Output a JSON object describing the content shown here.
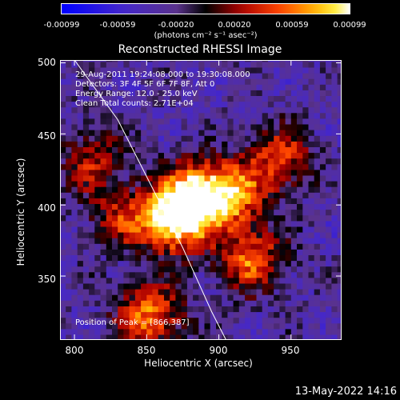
{
  "colorbar": {
    "tick_labels": [
      "-0.00099",
      "-0.00059",
      "-0.00020",
      "0.00020",
      "0.00059",
      "0.00099"
    ],
    "unit_label": "(photons cm⁻² s⁻¹ asec⁻²)",
    "range": [
      -0.00099,
      0.00099
    ]
  },
  "info": {
    "line1": "29-Aug-2011 19:24:08.000 to 19:30:08.000",
    "line2": "Detectors: 3F 4F 5F 6F 7F 8F, Att 0",
    "line3": "Energy Range: 12.0 - 25.0 keV",
    "line4": "Clean     Total counts: 2.71E+04",
    "peak": "Position of Peak = [866,387]"
  },
  "footer": "13-May-2022 14:16",
  "chart_data": {
    "type": "heatmap",
    "title": "Reconstructed RHESSI Image",
    "xlabel": "Heliocentric X (arcsec)",
    "ylabel": "Heliocentric Y (arcsec)",
    "xlim": [
      790,
      985
    ],
    "ylim": [
      305,
      502
    ],
    "xticks": [
      800,
      850,
      900,
      950
    ],
    "yticks": [
      350,
      400,
      450,
      500
    ],
    "peak": [
      866,
      387
    ],
    "limb_curve": [
      [
        800,
        502
      ],
      [
        830,
        460
      ],
      [
        855,
        410
      ],
      [
        875,
        370
      ],
      [
        895,
        325
      ],
      [
        905,
        305
      ]
    ],
    "bright_regions": [
      {
        "x": 866,
        "y": 387,
        "level": 1.0
      },
      {
        "x": 880,
        "y": 405,
        "level": 0.85
      },
      {
        "x": 905,
        "y": 405,
        "level": 0.8
      },
      {
        "x": 920,
        "y": 360,
        "level": 0.7
      },
      {
        "x": 850,
        "y": 320,
        "level": 0.75
      },
      {
        "x": 940,
        "y": 430,
        "level": 0.6
      },
      {
        "x": 810,
        "y": 430,
        "level": 0.45
      },
      {
        "x": 830,
        "y": 390,
        "level": 0.45
      }
    ],
    "grid": false
  }
}
